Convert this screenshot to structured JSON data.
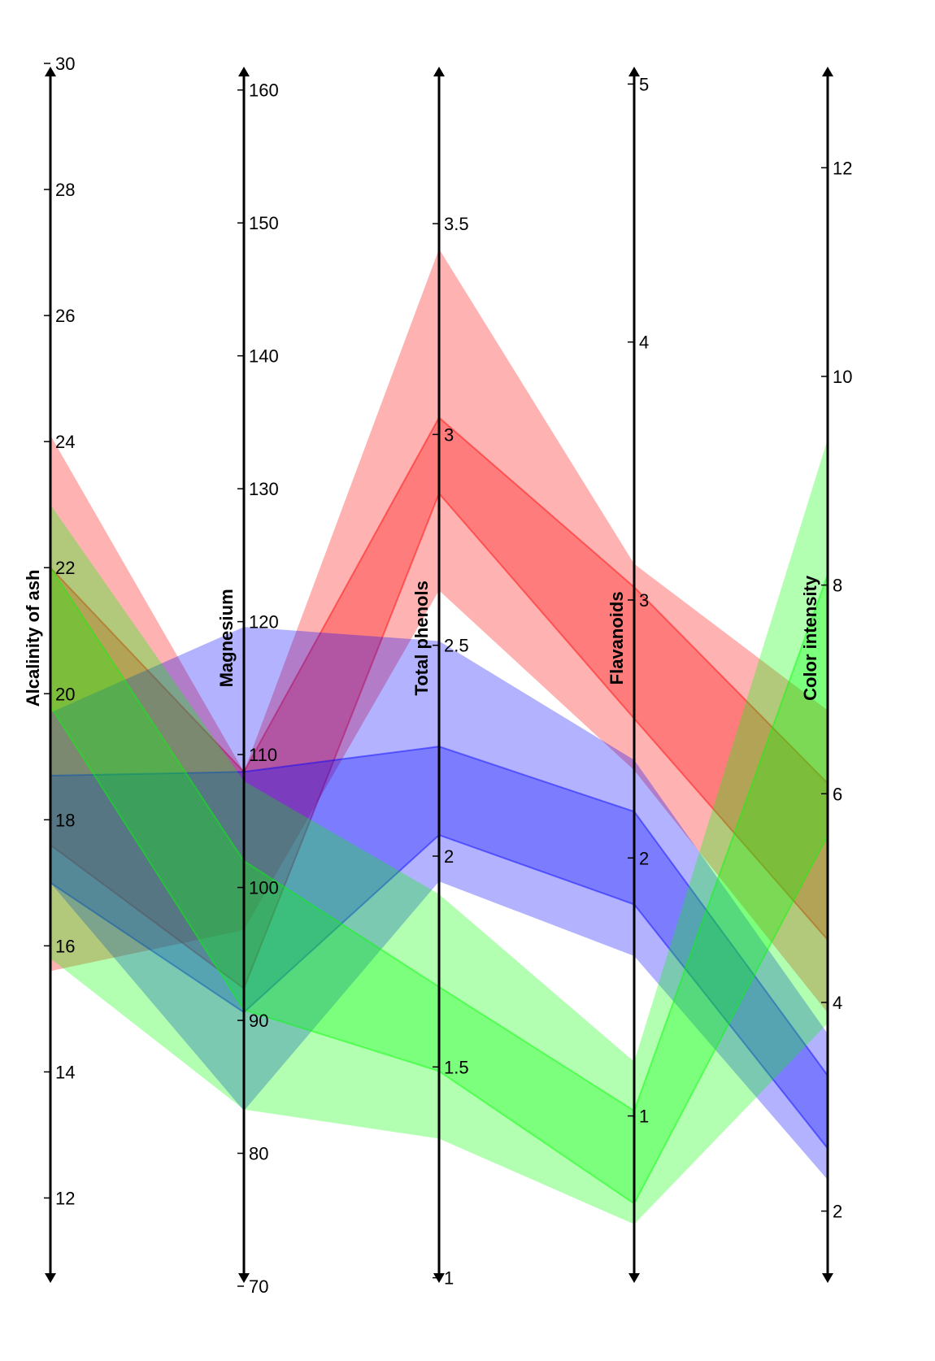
{
  "chart_data": {
    "type": "parallel-coordinates",
    "axes": [
      {
        "label": "Alcalinity of ash",
        "min": 10.6,
        "max": 30,
        "ticks": [
          12,
          14,
          16,
          18,
          20,
          22,
          24,
          26,
          28,
          30
        ]
      },
      {
        "label": "Magnesium",
        "min": 70,
        "max": 162,
        "ticks": [
          70,
          80,
          90,
          100,
          110,
          120,
          130,
          140,
          150,
          160
        ]
      },
      {
        "label": "Total phenols",
        "min": 0.98,
        "max": 3.88,
        "ticks": [
          1,
          1.5,
          2,
          2.5,
          3,
          3.5
        ],
        "tick_labels": [
          "1",
          "1.5",
          "2",
          "2.5",
          "3",
          "3.5"
        ]
      },
      {
        "label": "Flavanoids",
        "min": 0.34,
        "max": 5.08,
        "ticks": [
          1,
          2,
          3,
          4,
          5
        ]
      },
      {
        "label": "Color intensity",
        "min": 1.28,
        "max": 13.0,
        "ticks": [
          2,
          4,
          6,
          8,
          10,
          12
        ]
      }
    ],
    "series": [
      {
        "color": "#ff0000",
        "outer_low": [
          15.6,
          96.8,
          2.63,
          2.34,
          3.9
        ],
        "outer_high": [
          24.1,
          108.7,
          3.44,
          3.14,
          6.8
        ],
        "inner_low": [
          17.6,
          92.4,
          2.86,
          2.54,
          4.6
        ],
        "inner_high": [
          22.0,
          108.7,
          3.04,
          3.05,
          6.1
        ]
      },
      {
        "color": "#0000ff",
        "outer_low": [
          17.0,
          83.2,
          1.94,
          1.62,
          2.3
        ],
        "outer_high": [
          19.7,
          119.6,
          2.51,
          2.38,
          3.7
        ],
        "inner_low": [
          17.0,
          90.6,
          2.05,
          1.82,
          2.6
        ],
        "inner_high": [
          18.7,
          108.7,
          2.26,
          2.18,
          3.3
        ]
      },
      {
        "color": "#00ff00",
        "outer_low": [
          15.8,
          83.3,
          1.33,
          0.58,
          3.8
        ],
        "outer_high": [
          23.0,
          108.0,
          1.91,
          1.21,
          9.4
        ],
        "inner_low": [
          19.8,
          90.8,
          1.49,
          0.66,
          5.6
        ],
        "inner_high": [
          22.0,
          102.0,
          1.69,
          1.02,
          8.1
        ]
      }
    ]
  }
}
